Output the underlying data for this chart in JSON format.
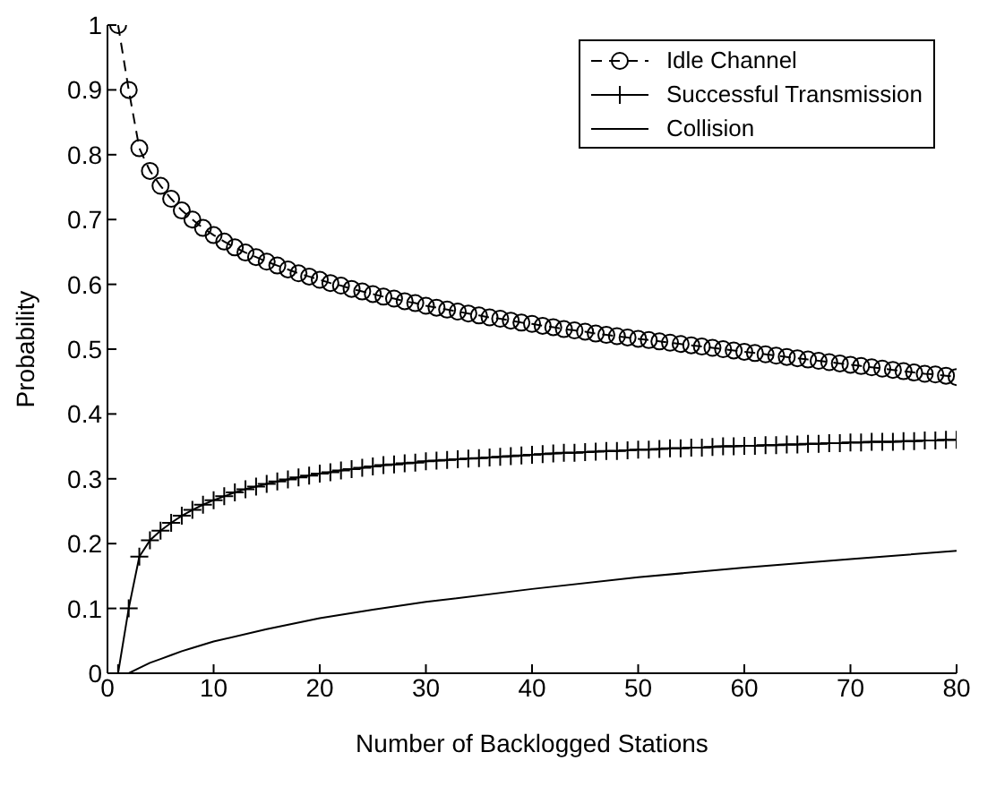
{
  "chart_data": {
    "type": "line",
    "xlabel": "Number of Backlogged Stations",
    "ylabel": "Probability",
    "xlim": [
      0,
      80
    ],
    "xticks": [
      0,
      10,
      20,
      30,
      40,
      50,
      60,
      70,
      80
    ],
    "ylim": [
      0,
      1
    ],
    "yticks": [
      0,
      0.1,
      0.2,
      0.3,
      0.4,
      0.5,
      0.6,
      0.7,
      0.8,
      0.9,
      1
    ],
    "grid": false,
    "legend": "top right",
    "x": [
      1,
      2,
      3,
      4,
      5,
      6,
      7,
      8,
      9,
      10,
      11,
      12,
      13,
      14,
      15,
      16,
      17,
      18,
      19,
      20,
      21,
      22,
      23,
      24,
      25,
      26,
      27,
      28,
      29,
      30,
      31,
      32,
      33,
      34,
      35,
      36,
      37,
      38,
      39,
      40,
      41,
      42,
      43,
      44,
      45,
      46,
      47,
      48,
      49,
      50,
      51,
      52,
      53,
      54,
      55,
      56,
      57,
      58,
      59,
      60,
      61,
      62,
      63,
      64,
      65,
      66,
      67,
      68,
      69,
      70,
      71,
      72,
      73,
      74,
      75,
      76,
      77,
      78,
      79,
      80
    ],
    "series": [
      {
        "name": "Idle Channel",
        "color": "#000000",
        "marker": "circle",
        "line_style": "dashed",
        "values": [
          1,
          0.9,
          0.81,
          0.775,
          0.752,
          0.732,
          0.714,
          0.7,
          0.687,
          0.676,
          0.666,
          0.657,
          0.649,
          0.642,
          0.635,
          0.629,
          0.623,
          0.617,
          0.612,
          0.607,
          0.602,
          0.598,
          0.593,
          0.589,
          0.585,
          0.581,
          0.578,
          0.574,
          0.571,
          0.567,
          0.564,
          0.561,
          0.558,
          0.555,
          0.552,
          0.549,
          0.547,
          0.544,
          0.541,
          0.539,
          0.536,
          0.534,
          0.531,
          0.529,
          0.527,
          0.524,
          0.522,
          0.52,
          0.518,
          0.516,
          0.514,
          0.512,
          0.51,
          0.508,
          0.506,
          0.504,
          0.502,
          0.5,
          0.498,
          0.496,
          0.494,
          0.492,
          0.49,
          0.488,
          0.486,
          0.484,
          0.482,
          0.48,
          0.478,
          0.476,
          0.474,
          0.472,
          0.47,
          0.468,
          0.466,
          0.464,
          0.462,
          0.461,
          0.459,
          0.457
        ]
      },
      {
        "name": "Successful Transmission",
        "color": "#000000",
        "marker": "cross",
        "line_style": "solid",
        "values": [
          0,
          0.1,
          0.18,
          0.205,
          0.22,
          0.232,
          0.243,
          0.252,
          0.26,
          0.267,
          0.273,
          0.279,
          0.284,
          0.288,
          0.292,
          0.296,
          0.299,
          0.302,
          0.305,
          0.308,
          0.31,
          0.313,
          0.315,
          0.317,
          0.319,
          0.321,
          0.322,
          0.324,
          0.325,
          0.327,
          0.328,
          0.329,
          0.33,
          0.331,
          0.332,
          0.333,
          0.334,
          0.335,
          0.336,
          0.337,
          0.338,
          0.339,
          0.34,
          0.34,
          0.341,
          0.342,
          0.343,
          0.343,
          0.344,
          0.345,
          0.345,
          0.346,
          0.347,
          0.347,
          0.348,
          0.348,
          0.349,
          0.35,
          0.35,
          0.351,
          0.351,
          0.352,
          0.352,
          0.353,
          0.353,
          0.354,
          0.354,
          0.355,
          0.355,
          0.356,
          0.356,
          0.357,
          0.357,
          0.357,
          0.358,
          0.358,
          0.359,
          0.359,
          0.36,
          0.36
        ]
      },
      {
        "name": "Collision",
        "color": "#000000",
        "marker": "none",
        "line_style": "solid",
        "x": [
          1,
          2,
          3,
          4,
          5,
          6,
          7,
          8,
          10,
          15,
          20,
          25,
          30,
          40,
          50,
          60,
          70,
          80
        ],
        "values": [
          0,
          0,
          0.008,
          0.016,
          0.022,
          0.028,
          0.034,
          0.039,
          0.049,
          0.068,
          0.085,
          0.098,
          0.11,
          0.13,
          0.148,
          0.163,
          0.176,
          0.189
        ]
      }
    ]
  }
}
